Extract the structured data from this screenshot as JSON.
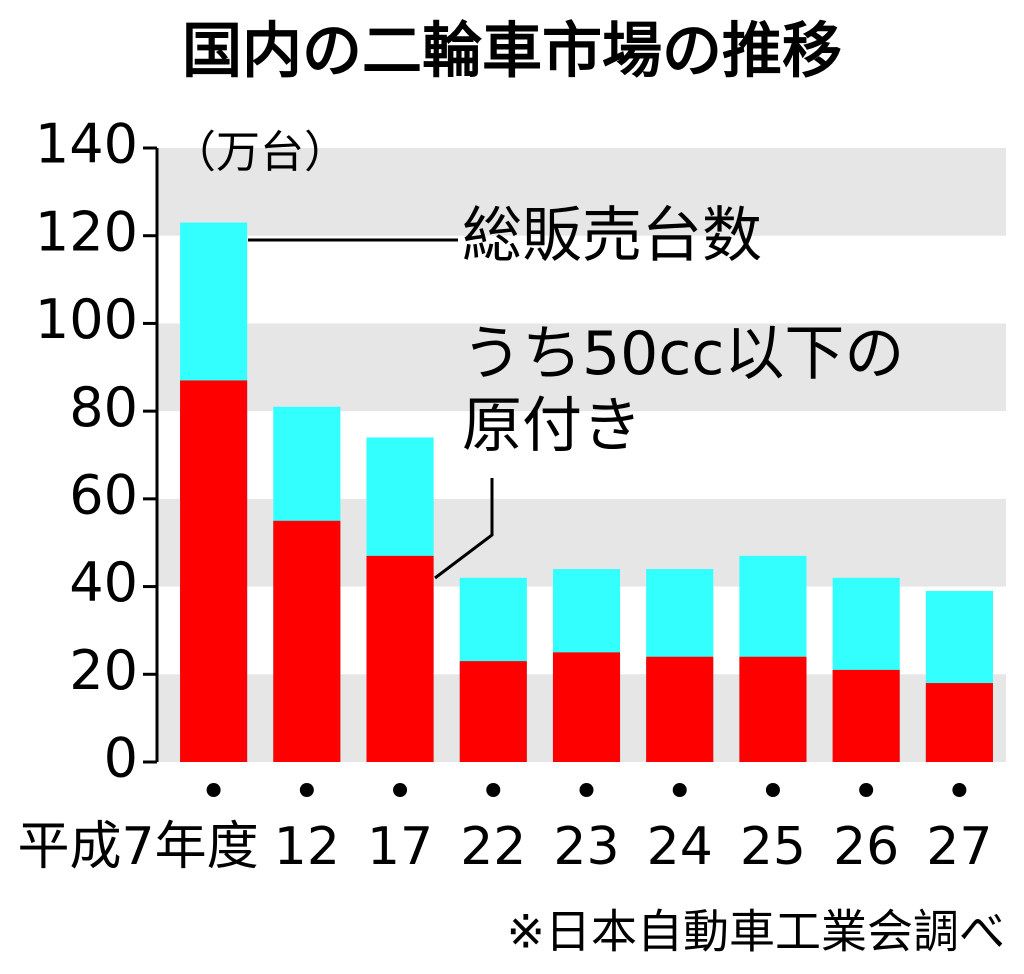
{
  "chart_data": {
    "type": "bar",
    "title": "国内の二輪車市場の推移",
    "unit_label": "（万台）",
    "categories": [
      "平成7年度",
      "12",
      "17",
      "22",
      "23",
      "24",
      "25",
      "26",
      "27"
    ],
    "series": [
      {
        "name": "総販売台数",
        "color": "#33ffff",
        "values": [
          123,
          81,
          74,
          42,
          44,
          44,
          47,
          42,
          39
        ]
      },
      {
        "name": "うち50cc以下の原付き",
        "color": "#ff0000",
        "values": [
          87,
          55,
          47,
          23,
          25,
          24,
          24,
          21,
          18
        ]
      }
    ],
    "ylim": [
      0,
      140
    ],
    "yticks": [
      0,
      20,
      40,
      60,
      80,
      100,
      120,
      140
    ],
    "grid": true,
    "source": "※日本自動車工業会調べ"
  }
}
